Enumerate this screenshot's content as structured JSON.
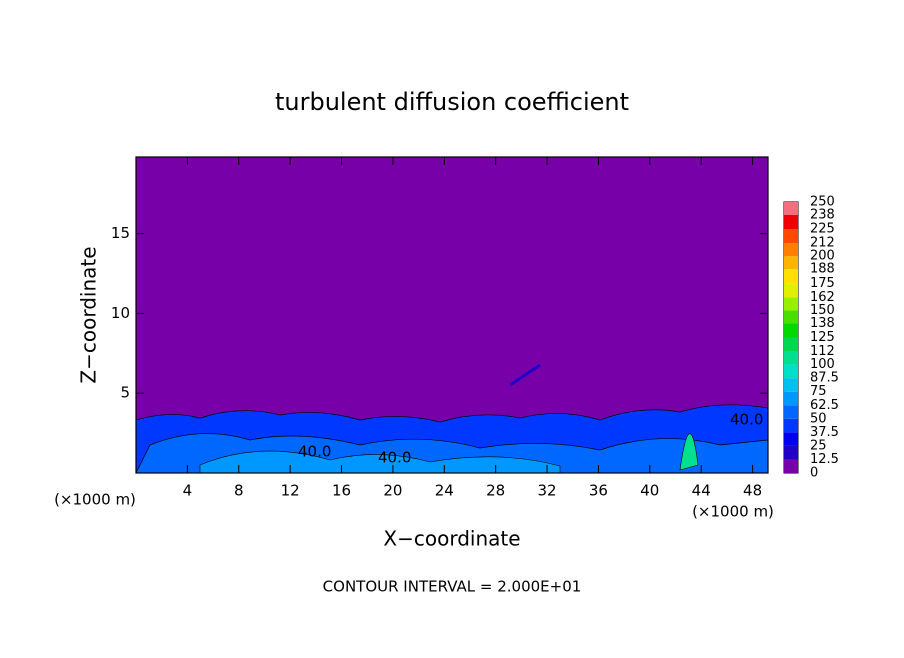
{
  "chart_data": {
    "type": "contour",
    "title": "turbulent diffusion coefficient",
    "xlabel": "X−coordinate",
    "ylabel": "Z−coordinate",
    "x_unit": "(×1000 m)",
    "x_unit_right": "(×1000 m)",
    "footnote": "CONTOUR INTERVAL = 2.000E+01",
    "xlim": [
      0,
      49.2
    ],
    "xticks": [
      4,
      8,
      12,
      16,
      20,
      24,
      28,
      32,
      36,
      40,
      44,
      48
    ],
    "ylim": [
      0,
      19.8
    ],
    "yticks": [
      5,
      10,
      15
    ],
    "contour_labels": [
      "40.0",
      "40.0",
      "40.0"
    ],
    "colorbar": {
      "levels": [
        0,
        12.5,
        25,
        37.5,
        50,
        62.5,
        75,
        87.5,
        100,
        112,
        125,
        138,
        150,
        162,
        175,
        188,
        200,
        212,
        225,
        238,
        250
      ],
      "colors": [
        "#7800a8",
        "#2000c8",
        "#0000f0",
        "#0038ff",
        "#0068ff",
        "#0098ff",
        "#00c0f0",
        "#00e0c8",
        "#00e090",
        "#00d850",
        "#00d800",
        "#48e000",
        "#98f000",
        "#e0f000",
        "#ffe000",
        "#ffb400",
        "#ff8000",
        "#ff4800",
        "#f00000",
        "#f07080"
      ]
    }
  }
}
